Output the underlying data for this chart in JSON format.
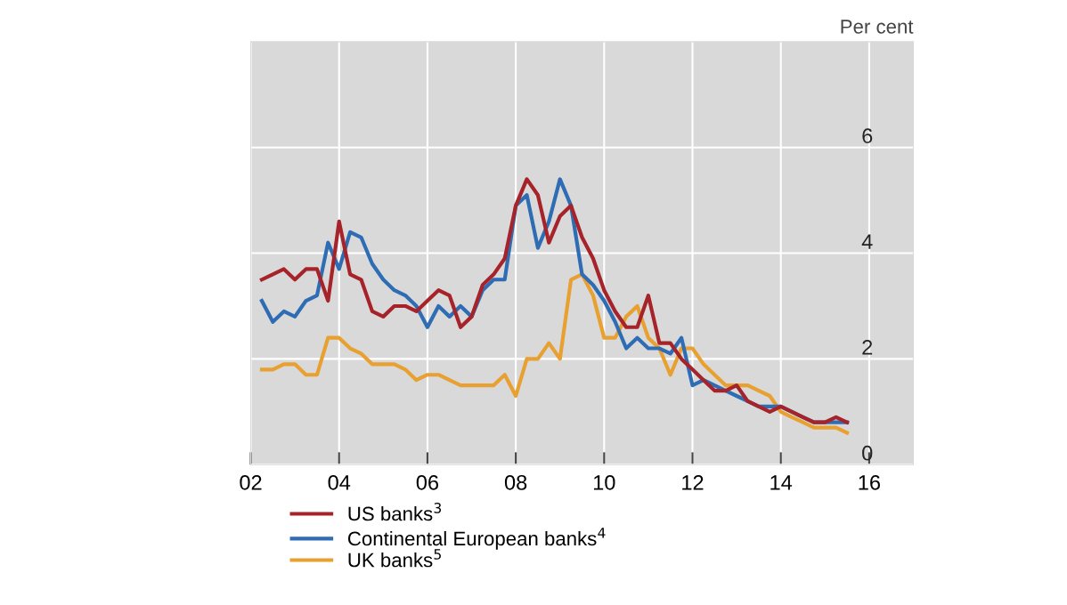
{
  "chart_data": {
    "type": "line",
    "ylabel": "Per cent",
    "x": [
      2002.25,
      2002.5,
      2002.75,
      2003,
      2003.25,
      2003.5,
      2003.75,
      2004,
      2004.25,
      2004.5,
      2004.75,
      2005,
      2005.25,
      2005.5,
      2005.75,
      2006,
      2006.25,
      2006.5,
      2006.75,
      2007,
      2007.25,
      2007.5,
      2007.75,
      2008,
      2008.25,
      2008.5,
      2008.75,
      2009,
      2009.25,
      2009.5,
      2009.75,
      2010,
      2010.25,
      2010.5,
      2010.75,
      2011,
      2011.25,
      2011.5,
      2011.75,
      2012,
      2012.25,
      2012.5,
      2012.75,
      2013,
      2013.25,
      2013.5,
      2013.75,
      2014,
      2014.25,
      2014.5,
      2014.75,
      2015,
      2015.25,
      2015.5
    ],
    "series": [
      {
        "name": "US banks$^{3}$",
        "color": "#a6232a",
        "values": [
          3.5,
          3.6,
          3.7,
          3.5,
          3.7,
          3.7,
          3.1,
          4.6,
          3.6,
          3.5,
          2.9,
          2.8,
          3.0,
          3.0,
          2.9,
          3.1,
          3.3,
          3.2,
          2.6,
          2.8,
          3.4,
          3.6,
          3.9,
          4.9,
          5.4,
          5.1,
          4.2,
          4.7,
          4.9,
          4.3,
          3.9,
          3.3,
          2.9,
          2.6,
          2.6,
          3.2,
          2.3,
          2.3,
          2.0,
          1.8,
          1.6,
          1.4,
          1.4,
          1.5,
          1.2,
          1.1,
          1.0,
          1.1,
          1.0,
          0.9,
          0.8,
          0.8,
          0.9,
          0.8
        ]
      },
      {
        "name": "Continental European banks$^{4}$",
        "color": "#2e6db4",
        "values": [
          3.1,
          2.7,
          2.9,
          2.8,
          3.1,
          3.2,
          4.2,
          3.7,
          4.4,
          4.3,
          3.8,
          3.5,
          3.3,
          3.2,
          3.0,
          2.6,
          3.0,
          2.8,
          3.0,
          2.8,
          3.3,
          3.5,
          3.5,
          4.9,
          5.1,
          4.1,
          4.6,
          5.4,
          4.9,
          3.6,
          3.4,
          3.1,
          2.7,
          2.2,
          2.4,
          2.2,
          2.2,
          2.1,
          2.4,
          1.5,
          1.6,
          1.5,
          1.4,
          1.3,
          1.2,
          1.1,
          1.1,
          1.1,
          1.0,
          0.9,
          0.8,
          0.8,
          0.8,
          0.8
        ]
      },
      {
        "name": "UK banks$^{5}$",
        "color": "#e8a030",
        "values": [
          1.8,
          1.8,
          1.9,
          1.9,
          1.7,
          1.7,
          2.4,
          2.4,
          2.2,
          2.1,
          1.9,
          1.9,
          1.9,
          1.8,
          1.6,
          1.7,
          1.7,
          1.6,
          1.5,
          1.5,
          1.5,
          1.5,
          1.7,
          1.3,
          2.0,
          2.0,
          2.3,
          2.0,
          3.5,
          3.6,
          3.2,
          2.4,
          2.4,
          2.8,
          3.0,
          2.4,
          2.2,
          1.7,
          2.2,
          2.2,
          1.9,
          1.7,
          1.5,
          1.5,
          1.5,
          1.4,
          1.3,
          1.0,
          0.9,
          0.8,
          0.7,
          0.7,
          0.7,
          0.6
        ]
      }
    ],
    "xlim": [
      2002,
      2017
    ],
    "xticks": [
      {
        "value": 2002,
        "label": "02"
      },
      {
        "value": 2004,
        "label": "04"
      },
      {
        "value": 2006,
        "label": "06"
      },
      {
        "value": 2008,
        "label": "08"
      },
      {
        "value": 2010,
        "label": "10"
      },
      {
        "value": 2012,
        "label": "12"
      },
      {
        "value": 2014,
        "label": "14"
      },
      {
        "value": 2016,
        "label": "16"
      }
    ],
    "ylim": [
      0,
      8
    ],
    "yticks": [
      0,
      2,
      4,
      6
    ],
    "grid": true,
    "legend": "bottom",
    "line_style": "solid",
    "marker": "none"
  }
}
